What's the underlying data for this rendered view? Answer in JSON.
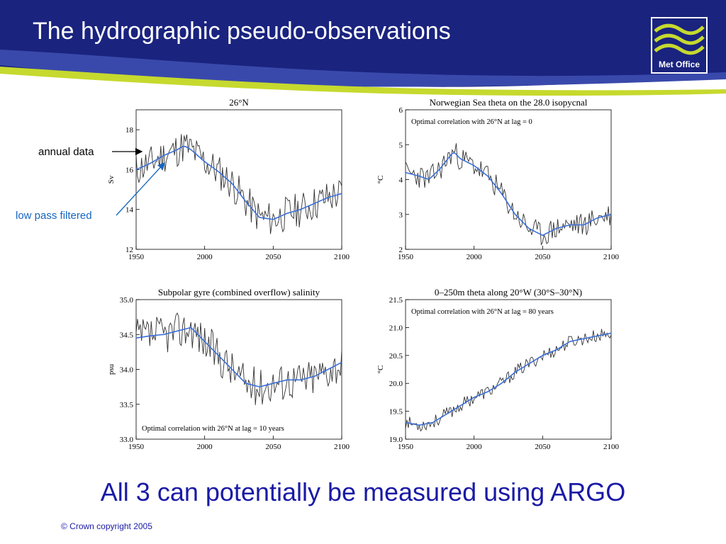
{
  "slide": {
    "title": "The hydrographic pseudo-observations",
    "logo_text": "Met Office",
    "annotation_annual": "annual data",
    "annotation_lowpass": "low pass filtered",
    "footer_statement": "All 3 can potentially be measured using ARGO",
    "copyright": "© Crown copyright 2005"
  },
  "colors": {
    "banner": "#1a237e",
    "accent_green": "#c6d92e",
    "annual_line": "#333333",
    "filtered_line": "#3a6fd8",
    "text_blue": "#1a1aa6",
    "annotation_blue": "#1565c0"
  },
  "icons": [
    "met-office-waves-icon"
  ],
  "chart_data": [
    {
      "type": "line",
      "title": "26°N",
      "ylabel": "Sv",
      "xlabel": "",
      "xlim": [
        1950,
        2100
      ],
      "ylim": [
        12,
        19
      ],
      "xticks": [
        "1950",
        "2000",
        "2050",
        "2100"
      ],
      "yticks": [
        "12",
        "14",
        "16",
        "18"
      ],
      "annotation": "",
      "seed": 11,
      "noise": 0.9,
      "series": [
        {
          "role": "annual",
          "x": [
            1950,
            1960,
            1970,
            1980,
            1985,
            1990,
            2000,
            2010,
            2020,
            2030,
            2040,
            2050,
            2060,
            2070,
            2080,
            2090,
            2100
          ],
          "values": [
            16.0,
            16.3,
            16.7,
            17.0,
            17.2,
            17.0,
            16.4,
            15.9,
            15.3,
            14.4,
            13.6,
            13.5,
            13.8,
            14.0,
            14.3,
            14.6,
            14.8
          ]
        },
        {
          "role": "filtered",
          "x": [
            1950,
            1960,
            1970,
            1980,
            1985,
            1990,
            2000,
            2010,
            2020,
            2030,
            2040,
            2050,
            2060,
            2070,
            2080,
            2090,
            2100
          ],
          "values": [
            16.0,
            16.3,
            16.7,
            17.0,
            17.2,
            17.0,
            16.4,
            15.9,
            15.3,
            14.4,
            13.6,
            13.5,
            13.8,
            14.0,
            14.3,
            14.6,
            14.8
          ]
        }
      ]
    },
    {
      "type": "line",
      "title": "Norwegian Sea theta on the 28.0 isopycnal",
      "ylabel": "°C",
      "xlabel": "",
      "xlim": [
        1950,
        2100
      ],
      "ylim": [
        2,
        6
      ],
      "xticks": [
        "1950",
        "2000",
        "2050",
        "2100"
      ],
      "yticks": [
        "2",
        "3",
        "4",
        "5",
        "6"
      ],
      "annotation": "Optimal correlation with 26°N at lag = 0",
      "seed": 23,
      "noise": 0.35,
      "series": [
        {
          "role": "annual",
          "x": [
            1950,
            1960,
            1967,
            1975,
            1985,
            1990,
            2000,
            2010,
            2020,
            2030,
            2040,
            2050,
            2060,
            2070,
            2080,
            2090,
            2100
          ],
          "values": [
            4.2,
            4.1,
            4.0,
            4.3,
            4.8,
            4.6,
            4.4,
            4.1,
            3.6,
            3.0,
            2.6,
            2.4,
            2.6,
            2.7,
            2.7,
            2.9,
            3.0
          ]
        },
        {
          "role": "filtered",
          "x": [
            1950,
            1960,
            1967,
            1975,
            1985,
            1990,
            2000,
            2010,
            2020,
            2030,
            2040,
            2050,
            2060,
            2070,
            2080,
            2090,
            2100
          ],
          "values": [
            4.2,
            4.1,
            4.0,
            4.3,
            4.8,
            4.6,
            4.4,
            4.1,
            3.6,
            3.0,
            2.6,
            2.4,
            2.6,
            2.7,
            2.7,
            2.9,
            3.0
          ]
        }
      ]
    },
    {
      "type": "line",
      "title": "Subpolar gyre (combined overflow) salinity",
      "ylabel": "psu",
      "xlabel": "",
      "xlim": [
        1950,
        2100
      ],
      "ylim": [
        33.0,
        35.0
      ],
      "xticks": [
        "1950",
        "2000",
        "2050",
        "2100"
      ],
      "yticks": [
        "33.0",
        "33.5",
        "34.0",
        "34.5",
        "35.0"
      ],
      "annotation": "Optimal correlation with 26°N at lag = 10 years",
      "seed": 37,
      "noise": 0.28,
      "series": [
        {
          "role": "annual",
          "x": [
            1950,
            1960,
            1970,
            1980,
            1990,
            2000,
            2010,
            2020,
            2030,
            2040,
            2050,
            2060,
            2070,
            2080,
            2090,
            2100
          ],
          "values": [
            34.45,
            34.48,
            34.5,
            34.55,
            34.6,
            34.4,
            34.2,
            34.0,
            33.8,
            33.75,
            33.8,
            33.85,
            33.85,
            33.9,
            34.0,
            34.1
          ]
        },
        {
          "role": "filtered",
          "x": [
            1950,
            1960,
            1970,
            1980,
            1990,
            2000,
            2010,
            2020,
            2030,
            2040,
            2050,
            2060,
            2070,
            2080,
            2090,
            2100
          ],
          "values": [
            34.45,
            34.48,
            34.5,
            34.55,
            34.6,
            34.4,
            34.2,
            34.0,
            33.8,
            33.75,
            33.8,
            33.85,
            33.85,
            33.9,
            34.0,
            34.1
          ]
        }
      ]
    },
    {
      "type": "line",
      "title": "0–250m theta along 20°W (30°S–30°N)",
      "ylabel": "°C",
      "xlabel": "",
      "xlim": [
        1950,
        2100
      ],
      "ylim": [
        19.0,
        21.5
      ],
      "xticks": [
        "1950",
        "2000",
        "2050",
        "2100"
      ],
      "yticks": [
        "19.0",
        "19.5",
        "20.0",
        "20.5",
        "21.0",
        "21.5"
      ],
      "annotation": "Optimal correlation with 26°N at lag = 80 years",
      "seed": 53,
      "noise": 0.12,
      "series": [
        {
          "role": "annual",
          "x": [
            1950,
            1960,
            1970,
            1980,
            1990,
            2000,
            2010,
            2020,
            2030,
            2040,
            2050,
            2060,
            2070,
            2080,
            2090,
            2100
          ],
          "values": [
            19.3,
            19.25,
            19.3,
            19.45,
            19.6,
            19.75,
            19.85,
            20.0,
            20.2,
            20.35,
            20.5,
            20.6,
            20.75,
            20.8,
            20.85,
            20.9
          ]
        },
        {
          "role": "filtered",
          "x": [
            1950,
            1960,
            1970,
            1980,
            1990,
            2000,
            2010,
            2020,
            2030,
            2040,
            2050,
            2060,
            2070,
            2080,
            2090,
            2100
          ],
          "values": [
            19.3,
            19.25,
            19.3,
            19.45,
            19.6,
            19.75,
            19.85,
            20.0,
            20.2,
            20.35,
            20.5,
            20.6,
            20.75,
            20.8,
            20.85,
            20.9
          ]
        }
      ]
    }
  ]
}
